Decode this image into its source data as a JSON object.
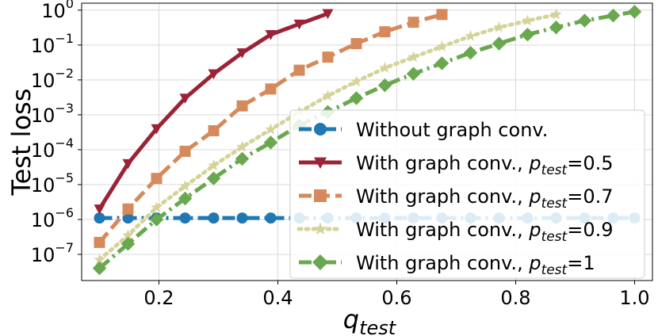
{
  "chart_data": {
    "type": "line",
    "xlabel": "q",
    "xlabel_sub": "test",
    "ylabel": "Test loss",
    "xlim": [
      0.07,
      1.03
    ],
    "ylim_log10": [
      -7.75,
      0.2
    ],
    "yscale": "log",
    "grid": true,
    "legend_position": "right",
    "xticks": [
      {
        "value": 0.2,
        "label": "0.2"
      },
      {
        "value": 0.4,
        "label": "0.4"
      },
      {
        "value": 0.6,
        "label": "0.6"
      },
      {
        "value": 0.8,
        "label": "0.8"
      },
      {
        "value": 1.0,
        "label": "1.0"
      }
    ],
    "yticks": [
      {
        "exp": 0,
        "base": "10",
        "sup": "0"
      },
      {
        "exp": -1,
        "base": "10",
        "sup": "−1"
      },
      {
        "exp": -2,
        "base": "10",
        "sup": "−2"
      },
      {
        "exp": -3,
        "base": "10",
        "sup": "−3"
      },
      {
        "exp": -4,
        "base": "10",
        "sup": "−4"
      },
      {
        "exp": -5,
        "base": "10",
        "sup": "−5"
      },
      {
        "exp": -6,
        "base": "10",
        "sup": "−6"
      },
      {
        "exp": -7,
        "base": "10",
        "sup": "−7"
      }
    ],
    "series": [
      {
        "name": "Without graph conv.",
        "label_main": "Without graph conv.",
        "color": "#1f77b4",
        "marker": "circle",
        "dash": "dashdot",
        "x": [
          0.1,
          0.148,
          0.196,
          0.244,
          0.292,
          0.34,
          0.388,
          0.436,
          0.484,
          0.532,
          0.58,
          0.628,
          0.676,
          0.724,
          0.772,
          0.82,
          0.868,
          0.916,
          0.964,
          1.0
        ],
        "y": [
          1.1e-06,
          1.1e-06,
          1.1e-06,
          1.1e-06,
          1.1e-06,
          1.1e-06,
          1.1e-06,
          1.1e-06,
          1.1e-06,
          1.1e-06,
          1.1e-06,
          1.1e-06,
          1.1e-06,
          1.1e-06,
          1.1e-06,
          1.1e-06,
          1.1e-06,
          1.1e-06,
          1.1e-06,
          1.1e-06
        ]
      },
      {
        "name": "With graph conv., p_test=0.5",
        "label_main": "With graph conv., ",
        "label_p": "p",
        "label_sub": "test",
        "label_val": "=0.5",
        "color": "#9b2335",
        "marker": "triangle-down",
        "dash": "solid",
        "x": [
          0.1,
          0.148,
          0.196,
          0.244,
          0.292,
          0.34,
          0.388,
          0.436,
          0.484
        ],
        "y": [
          2e-06,
          4e-05,
          0.0004,
          0.003,
          0.015,
          0.06,
          0.2,
          0.4,
          0.8
        ]
      },
      {
        "name": "With graph conv., p_test=0.7",
        "label_main": "With graph conv., ",
        "label_p": "p",
        "label_sub": "test",
        "label_val": "=0.7",
        "color": "#d68a5c",
        "marker": "square",
        "dash": "dashed",
        "x": [
          0.1,
          0.148,
          0.196,
          0.244,
          0.292,
          0.34,
          0.388,
          0.436,
          0.484,
          0.532,
          0.58,
          0.628,
          0.676
        ],
        "y": [
          2.2e-07,
          2e-06,
          1.5e-05,
          9e-05,
          0.00035,
          0.0018,
          0.0055,
          0.019,
          0.045,
          0.11,
          0.24,
          0.45,
          0.75
        ]
      },
      {
        "name": "With graph conv., p_test=0.9",
        "label_main": "With graph conv., ",
        "label_p": "p",
        "label_sub": "test",
        "label_val": "=0.9",
        "color": "#d4d49a",
        "marker": "star",
        "dash": "dotted",
        "x": [
          0.1,
          0.148,
          0.196,
          0.244,
          0.292,
          0.34,
          0.388,
          0.436,
          0.484,
          0.532,
          0.58,
          0.628,
          0.676,
          0.724,
          0.772,
          0.82,
          0.868
        ],
        "y": [
          7e-08,
          3.5e-07,
          2.2e-06,
          9e-06,
          3.5e-05,
          0.00012,
          0.00038,
          0.0012,
          0.0035,
          0.009,
          0.022,
          0.045,
          0.09,
          0.18,
          0.32,
          0.5,
          0.75
        ]
      },
      {
        "name": "With graph conv., p_test=1",
        "label_main": "With graph conv., ",
        "label_p": "p",
        "label_sub": "test",
        "label_val": "=1",
        "color": "#6aa84f",
        "marker": "diamond",
        "dash": "dashdot",
        "x": [
          0.1,
          0.148,
          0.196,
          0.244,
          0.292,
          0.34,
          0.388,
          0.436,
          0.484,
          0.532,
          0.58,
          0.628,
          0.676,
          0.724,
          0.772,
          0.82,
          0.868,
          0.916,
          0.964,
          1.0
        ],
        "y": [
          4e-08,
          2e-07,
          1e-06,
          4e-06,
          1.5e-05,
          5.5e-05,
          0.00016,
          0.0005,
          0.0012,
          0.003,
          0.007,
          0.015,
          0.03,
          0.06,
          0.11,
          0.2,
          0.32,
          0.5,
          0.7,
          0.9
        ]
      }
    ]
  }
}
